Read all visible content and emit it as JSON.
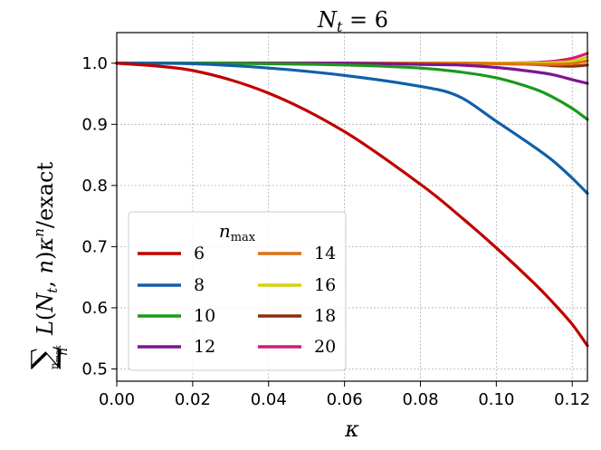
{
  "chart_data": {
    "type": "line",
    "title": "N_t = 6",
    "xlabel": "κ",
    "ylabel": "Σ_n^{n_max} L(N_t, n) κ^n / exact",
    "xlim": [
      0.0,
      0.124
    ],
    "ylim": [
      0.48,
      1.05
    ],
    "xticks": [
      "0.00",
      "0.02",
      "0.04",
      "0.06",
      "0.08",
      "0.10",
      "0.12"
    ],
    "yticks": [
      "0.5",
      "0.6",
      "0.7",
      "0.8",
      "0.9",
      "1.0"
    ],
    "grid": true,
    "legend": {
      "title": "n_max",
      "placement": "lower-left",
      "columns": 2
    },
    "x": [
      0.0,
      0.02,
      0.04,
      0.06,
      0.08,
      0.09,
      0.1,
      0.11,
      0.115,
      0.12,
      0.124
    ],
    "series": [
      {
        "name": "6",
        "color": "#c00000",
        "values": [
          1.0,
          0.988,
          0.951,
          0.888,
          0.802,
          0.752,
          0.698,
          0.64,
          0.608,
          0.573,
          0.538
        ]
      },
      {
        "name": "8",
        "color": "#1060a8",
        "values": [
          1.0,
          0.999,
          0.992,
          0.98,
          0.962,
          0.946,
          0.905,
          0.863,
          0.84,
          0.812,
          0.787
        ]
      },
      {
        "name": "10",
        "color": "#1a9a1a",
        "values": [
          1.0,
          1.0,
          0.999,
          0.997,
          0.992,
          0.986,
          0.976,
          0.958,
          0.944,
          0.926,
          0.908
        ]
      },
      {
        "name": "12",
        "color": "#7d1590",
        "values": [
          1.0,
          1.0,
          1.0,
          1.0,
          0.998,
          0.997,
          0.993,
          0.986,
          0.981,
          0.973,
          0.967
        ]
      },
      {
        "name": "14",
        "color": "#e07010",
        "values": [
          1.0,
          1.0,
          1.0,
          1.0,
          1.0,
          1.0,
          0.999,
          0.998,
          0.998,
          0.999,
          1.004
        ]
      },
      {
        "name": "16",
        "color": "#d8d010",
        "values": [
          1.0,
          1.0,
          1.0,
          1.0,
          1.0,
          1.0,
          1.0,
          1.0,
          1.001,
          1.003,
          1.01
        ]
      },
      {
        "name": "18",
        "color": "#8b2e10",
        "values": [
          1.0,
          1.0,
          1.0,
          1.0,
          1.0,
          1.0,
          0.9995,
          0.998,
          0.996,
          0.995,
          0.997
        ]
      },
      {
        "name": "20",
        "color": "#d41a78",
        "values": [
          1.0,
          1.0,
          1.0,
          1.0,
          1.0,
          1.0,
          1.0,
          1.001,
          1.003,
          1.008,
          1.016
        ]
      }
    ]
  }
}
